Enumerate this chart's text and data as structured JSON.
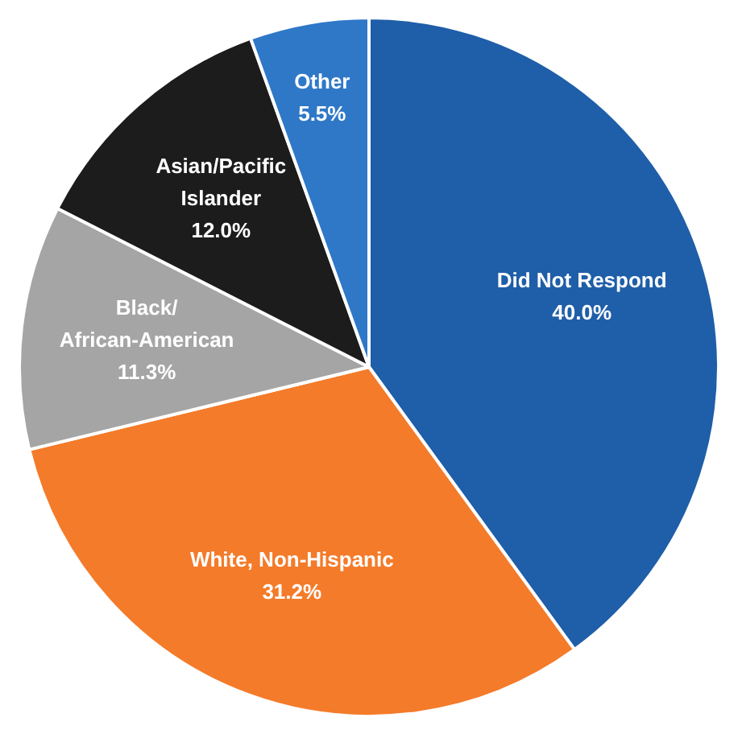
{
  "chart_data": {
    "type": "pie",
    "categories": [
      "Did Not Respond",
      "White, Non-Hispanic",
      "Black/African-American",
      "Asian/Pacific Islander",
      "Other"
    ],
    "values": [
      40.0,
      31.2,
      11.3,
      12.0,
      5.5
    ],
    "value_labels": [
      "40.0%",
      "31.2%",
      "11.3%",
      "12.0%",
      "5.5%"
    ],
    "colors": [
      "#1f5ea8",
      "#f47b2a",
      "#a5a5a5",
      "#1c1c1c",
      "#2f78c8"
    ],
    "legend": false
  }
}
